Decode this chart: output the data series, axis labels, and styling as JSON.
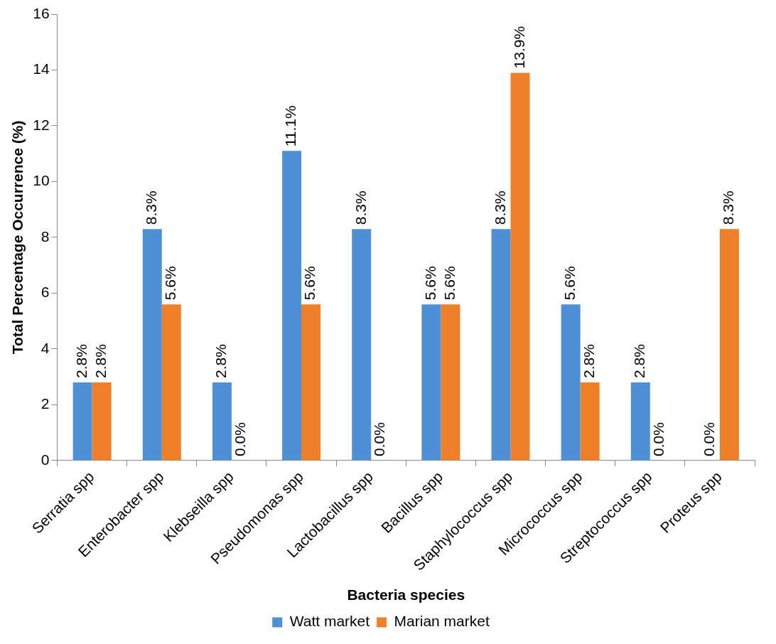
{
  "chart_data": {
    "type": "bar",
    "xlabel": "Bacteria species",
    "ylabel": "Total Percentage Occurrence (%)",
    "categories": [
      "Serratia spp",
      "Enterobacter spp",
      "Klebseilla spp",
      "Pseudomonas spp",
      "Lactobacillus spp",
      "Bacillus spp",
      "Staphylococcus spp",
      "Micrococcus spp",
      "Streptococcus spp",
      "Proteus spp"
    ],
    "series": [
      {
        "name": "Watt market",
        "color": "#4f8fd6",
        "values": [
          2.8,
          8.3,
          2.8,
          11.1,
          8.3,
          5.6,
          8.3,
          5.6,
          2.8,
          0.0
        ],
        "value_labels": [
          "2.8%",
          "8.3%",
          "2.8%",
          "11.1%",
          "8.3%",
          "5.6%",
          "8.3%",
          "5.6%",
          "2.8%",
          "0.0%"
        ]
      },
      {
        "name": "Marian market",
        "color": "#f07f2a",
        "values": [
          2.8,
          5.6,
          0.0,
          5.6,
          0.0,
          5.6,
          13.9,
          2.8,
          0.0,
          8.3
        ],
        "value_labels": [
          "2.8%",
          "5.6%",
          "0.0%",
          "5.6%",
          "0.0%",
          "5.6%",
          "13.9%",
          "2.8%",
          "0.0%",
          "8.3%"
        ]
      }
    ],
    "ylim": [
      0,
      16
    ],
    "yticks": [
      0,
      2,
      4,
      6,
      8,
      10,
      12,
      14,
      16
    ],
    "grid": false,
    "legend": "bottom"
  }
}
